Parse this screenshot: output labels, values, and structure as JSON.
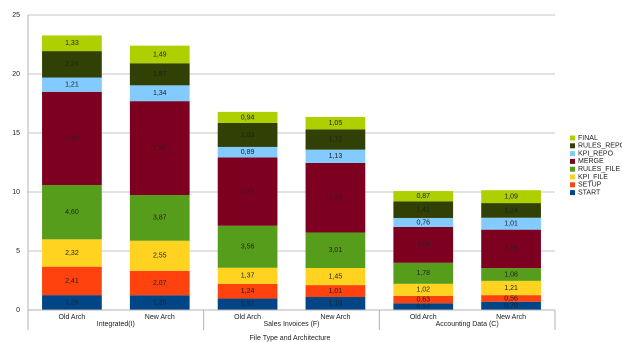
{
  "chart_data": {
    "type": "stacked_bar",
    "x_axis_label": "File Type and Architecture",
    "categories": [
      "Old Arch",
      "New Arch",
      "Old Arch",
      "New Arch",
      "Old Arch",
      "New Arch"
    ],
    "groups": [
      "Integrated(I)",
      "Sales Invoices (F)",
      "Accounting Data (C)"
    ],
    "ylim": [
      0,
      25
    ],
    "yticks": [
      0,
      5,
      10,
      15,
      20,
      25
    ],
    "grid": true,
    "legend": "right",
    "series": [
      {
        "name": "START",
        "color": "#004586",
        "values": [
          1.26,
          1.25,
          0.97,
          1.1,
          0.57,
          0.7
        ],
        "value_labels": [
          "1,26",
          "1,25",
          "0,97",
          "1,10",
          "0,57",
          "0,70"
        ]
      },
      {
        "name": "SETUP",
        "color": "#ff420e",
        "values": [
          2.41,
          2.07,
          1.24,
          1.01,
          0.63,
          0.56
        ],
        "value_labels": [
          "2,41",
          "2,07",
          "1,24",
          "1,01",
          "0,63",
          "0,56"
        ]
      },
      {
        "name": "KPI_FILE",
        "color": "#ffd320",
        "values": [
          2.32,
          2.55,
          1.37,
          1.45,
          1.02,
          1.21
        ],
        "value_labels": [
          "2,32",
          "2,55",
          "1,37",
          "1,45",
          "1,02",
          "1,21"
        ]
      },
      {
        "name": "RULES_FILE",
        "color": "#579d1c",
        "values": [
          4.6,
          3.87,
          3.56,
          3.01,
          1.78,
          1.08
        ],
        "value_labels": [
          "4,60",
          "3,87",
          "3,56",
          "3,01",
          "1,78",
          "1,08"
        ]
      },
      {
        "name": "MERGE",
        "color": "#7e0021",
        "values": [
          7.9,
          7.96,
          5.79,
          5.89,
          3.04,
          3.26
        ],
        "value_labels": [
          "7,90",
          "7,96",
          "5,79",
          "5,89",
          "3,04",
          "3,26"
        ]
      },
      {
        "name": "KPI_REPO",
        "color": "#83caff",
        "values": [
          1.21,
          1.34,
          0.89,
          1.13,
          0.76,
          1.01
        ],
        "value_labels": [
          "1,21",
          "1,34",
          "0,89",
          "1,13",
          "0,76",
          "1,01"
        ]
      },
      {
        "name": "RULES_REPO",
        "color": "#314004",
        "values": [
          2.24,
          1.87,
          2.03,
          1.72,
          1.41,
          1.24
        ],
        "value_labels": [
          "2,24",
          "1,87",
          "2,03",
          "1,72",
          "1,41",
          "1,24"
        ]
      },
      {
        "name": "FINAL",
        "color": "#aecf00",
        "values": [
          1.33,
          1.49,
          0.94,
          1.05,
          0.87,
          1.09
        ],
        "value_labels": [
          "1,33",
          "1,49",
          "0,94",
          "1,05",
          "0,87",
          "1,09"
        ]
      }
    ]
  }
}
